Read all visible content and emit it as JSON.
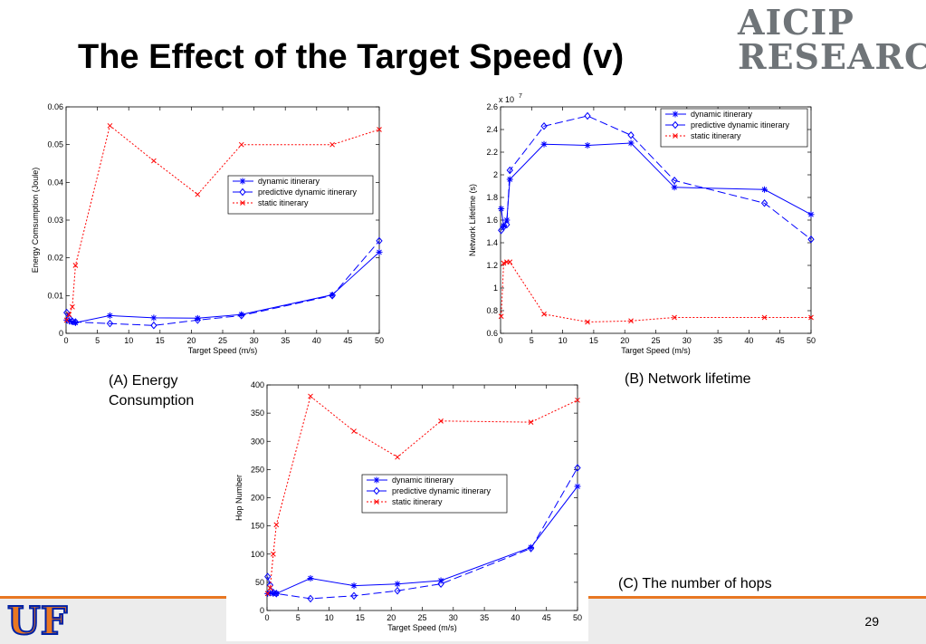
{
  "slide": {
    "title": "The Effect of the Target Speed (v)",
    "logo_line1": "AICIP",
    "logo_line2": "RESEARCH",
    "uf_logo_text": "UF",
    "page_number": "29",
    "colors": {
      "accent": "#e87722",
      "uf_blue": "#0021a5",
      "series_blue": "#0000ff",
      "series_red": "#ff0000"
    }
  },
  "chart_data": [
    {
      "id": "A",
      "type": "line",
      "caption_line1": "(A) Energy",
      "caption_line2": "Consumption",
      "xlabel": "Target Speed (m/s)",
      "ylabel": "Energy Comsumption (Joule)",
      "xlim": [
        0,
        50
      ],
      "ylim": [
        0,
        0.06
      ],
      "xticks": [
        "0",
        "5",
        "10",
        "15",
        "20",
        "25",
        "30",
        "35",
        "40",
        "45",
        "50"
      ],
      "yticks": [
        "0",
        "0.01",
        "0.02",
        "0.03",
        "0.04",
        "0.05",
        "0.06"
      ],
      "legend_position": "middle-right",
      "series": [
        {
          "name": "dynamic itinerary",
          "color": "#0000ff",
          "dash": "solid",
          "marker": "star",
          "x": [
            0.1,
            0.5,
            1,
            1.5,
            7,
            14,
            21,
            28,
            42.5,
            50
          ],
          "y": [
            0.0035,
            0.0032,
            0.003,
            0.0028,
            0.0047,
            0.0041,
            0.004,
            0.005,
            0.0102,
            0.0215
          ]
        },
        {
          "name": "predictive dynamic itinerary",
          "color": "#0000ff",
          "dash": "long",
          "marker": "diamond",
          "x": [
            0.1,
            0.5,
            1,
            1.5,
            7,
            14,
            21,
            28,
            42.5,
            50
          ],
          "y": [
            0.0055,
            0.004,
            0.0032,
            0.003,
            0.0026,
            0.0021,
            0.0035,
            0.0047,
            0.01,
            0.0245
          ]
        },
        {
          "name": "static itinerary",
          "color": "#ff0000",
          "dash": "dot",
          "marker": "x",
          "x": [
            0.1,
            0.5,
            1,
            1.5,
            7,
            14,
            21,
            28,
            42.5,
            50
          ],
          "y": [
            0.0035,
            0.005,
            0.007,
            0.018,
            0.055,
            0.0457,
            0.0368,
            0.05,
            0.05,
            0.054
          ]
        }
      ]
    },
    {
      "id": "B",
      "type": "line",
      "caption_line1": "(B) Network lifetime",
      "xlabel": "Target Speed (m/s)",
      "ylabel": "Network Lifetime (s)",
      "y_multiplier": "x 10",
      "y_exponent": "7",
      "xlim": [
        0,
        50
      ],
      "ylim": [
        0.6,
        2.6
      ],
      "xticks": [
        "0",
        "5",
        "10",
        "15",
        "20",
        "25",
        "30",
        "35",
        "40",
        "45",
        "50"
      ],
      "yticks": [
        "0.6",
        "0.8",
        "1",
        "1.2",
        "1.4",
        "1.6",
        "1.8",
        "2",
        "2.2",
        "2.4",
        "2.6"
      ],
      "legend_position": "top-right",
      "series": [
        {
          "name": "dynamic itinerary",
          "color": "#0000ff",
          "dash": "solid",
          "marker": "star",
          "x": [
            0.1,
            0.5,
            1,
            1.5,
            7,
            14,
            21,
            28,
            42.5,
            50
          ],
          "y": [
            1.7,
            1.55,
            1.6,
            1.96,
            2.27,
            2.26,
            2.28,
            1.89,
            1.87,
            1.65
          ]
        },
        {
          "name": "predictive dynamic itinerary",
          "color": "#0000ff",
          "dash": "long",
          "marker": "diamond",
          "x": [
            0.1,
            0.5,
            1,
            1.5,
            7,
            14,
            21,
            28,
            42.5,
            50
          ],
          "y": [
            1.51,
            1.54,
            1.56,
            2.04,
            2.43,
            2.52,
            2.35,
            1.95,
            1.75,
            1.43
          ]
        },
        {
          "name": "static itinerary",
          "color": "#ff0000",
          "dash": "dot",
          "marker": "x",
          "x": [
            0.1,
            0.5,
            1,
            1.5,
            7,
            14,
            21,
            28,
            42.5,
            50
          ],
          "y": [
            0.75,
            1.22,
            1.23,
            1.23,
            0.77,
            0.7,
            0.71,
            0.74,
            0.74,
            0.74
          ]
        }
      ]
    },
    {
      "id": "C",
      "type": "line",
      "caption_line1": "(C) The number of hops",
      "xlabel": "Target Speed (m/s)",
      "ylabel": "Hop Number",
      "xlim": [
        0,
        50
      ],
      "ylim": [
        0,
        400
      ],
      "xticks": [
        "0",
        "5",
        "10",
        "15",
        "20",
        "25",
        "30",
        "35",
        "40",
        "45",
        "50"
      ],
      "yticks": [
        "0",
        "50",
        "100",
        "150",
        "200",
        "250",
        "300",
        "350",
        "400"
      ],
      "legend_position": "middle-right",
      "series": [
        {
          "name": "dynamic itinerary",
          "color": "#0000ff",
          "dash": "solid",
          "marker": "star",
          "x": [
            0.1,
            0.5,
            1,
            1.5,
            7,
            14,
            21,
            28,
            42.5,
            50
          ],
          "y": [
            30,
            31,
            30,
            30,
            57,
            44,
            47,
            53,
            112,
            220
          ]
        },
        {
          "name": "predictive dynamic itinerary",
          "color": "#0000ff",
          "dash": "long",
          "marker": "diamond",
          "x": [
            0.1,
            0.5,
            1,
            1.5,
            7,
            14,
            21,
            28,
            42.5,
            50
          ],
          "y": [
            60,
            45,
            32,
            30,
            21,
            26,
            35,
            47,
            110,
            253
          ]
        },
        {
          "name": "static itinerary",
          "color": "#ff0000",
          "dash": "dot",
          "marker": "x",
          "x": [
            0.1,
            0.5,
            1,
            1.5,
            7,
            14,
            21,
            28,
            42.5,
            50
          ],
          "y": [
            30,
            40,
            100,
            152,
            380,
            318,
            272,
            336,
            334,
            373
          ]
        }
      ]
    }
  ]
}
